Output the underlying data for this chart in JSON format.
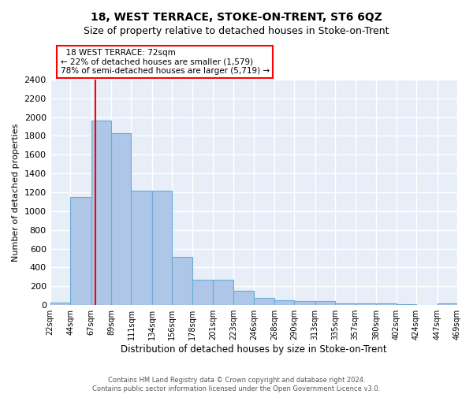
{
  "title": "18, WEST TERRACE, STOKE-ON-TRENT, ST6 6QZ",
  "subtitle": "Size of property relative to detached houses in Stoke-on-Trent",
  "xlabel": "Distribution of detached houses by size in Stoke-on-Trent",
  "ylabel": "Number of detached properties",
  "footer_line1": "Contains HM Land Registry data © Crown copyright and database right 2024.",
  "footer_line2": "Contains public sector information licensed under the Open Government Licence v3.0.",
  "annotation_title": "18 WEST TERRACE: 72sqm",
  "annotation_line1": "← 22% of detached houses are smaller (1,579)",
  "annotation_line2": "78% of semi-detached houses are larger (5,719) →",
  "property_size_sqm": 72,
  "bar_lefts": [
    22,
    44,
    67,
    89,
    111,
    134,
    156,
    178,
    201,
    223,
    246,
    268,
    290,
    313,
    335,
    357,
    380,
    402,
    424,
    447
  ],
  "bar_rights": [
    44,
    67,
    89,
    111,
    134,
    156,
    178,
    201,
    223,
    246,
    268,
    290,
    313,
    335,
    357,
    380,
    402,
    424,
    447,
    469
  ],
  "bar_heights": [
    30,
    1150,
    1960,
    1830,
    1220,
    1220,
    515,
    270,
    270,
    150,
    80,
    50,
    45,
    40,
    22,
    22,
    15,
    10,
    5,
    15
  ],
  "bar_color": "#aec6e8",
  "bar_edge_color": "#6aadd5",
  "red_line_x": 72,
  "ylim": [
    0,
    2400
  ],
  "yticks": [
    0,
    200,
    400,
    600,
    800,
    1000,
    1200,
    1400,
    1600,
    1800,
    2000,
    2200,
    2400
  ],
  "xlim_left": 22,
  "xlim_right": 469,
  "bg_color": "#e8eef8",
  "grid_color": "#ffffff",
  "annotation_box_facecolor": "#ffffff",
  "annotation_box_edgecolor": "red",
  "title_fontsize": 10,
  "subtitle_fontsize": 9
}
